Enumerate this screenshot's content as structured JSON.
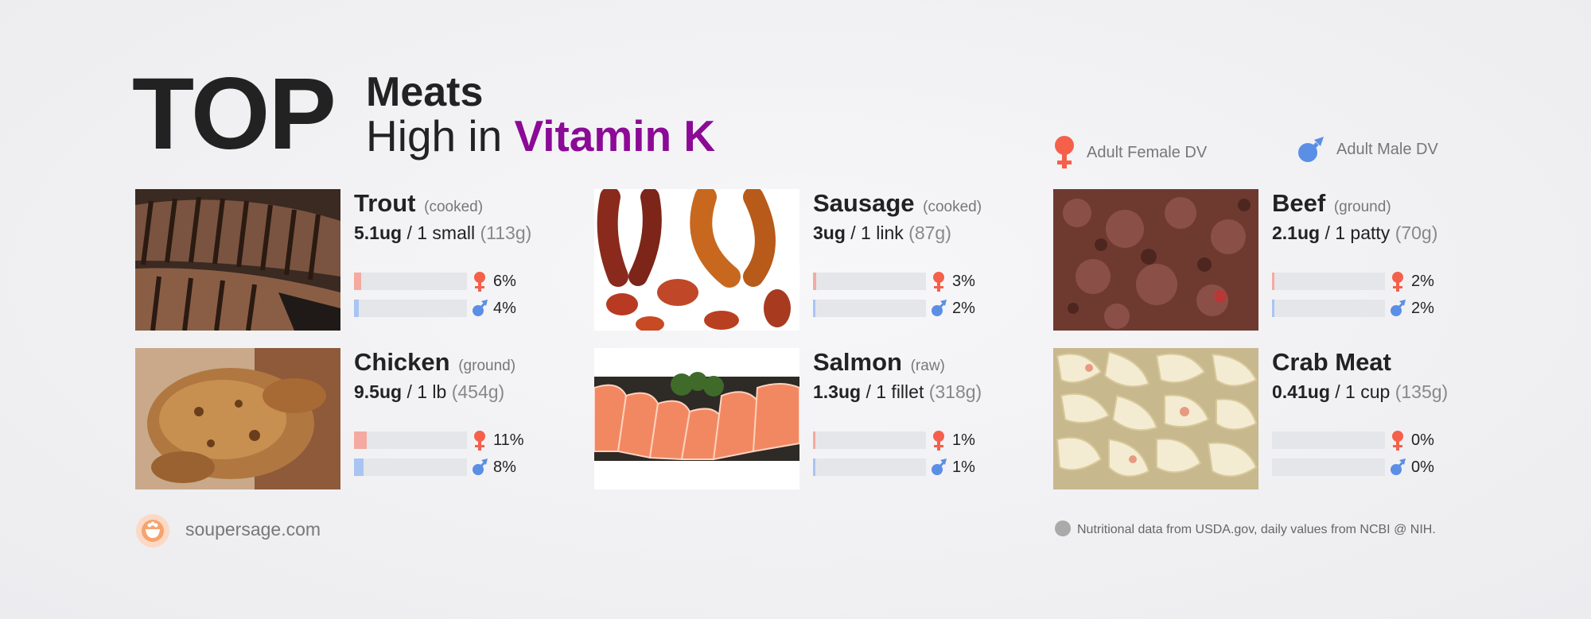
{
  "title": {
    "top": "TOP",
    "line1": "Meats",
    "line2_prefix": "High in",
    "line2_highlight": "Vitamin K"
  },
  "colors": {
    "highlight": "#8b0a96",
    "female": "#f5604a",
    "male": "#5b8fe6",
    "female_bar": "#f4aaa0",
    "male_bar": "#a9c4f2"
  },
  "legend": {
    "female_label": "Adult Female DV",
    "male_label": "Adult Male DV",
    "female_icon": "female-symbol-icon",
    "male_icon": "male-symbol-icon"
  },
  "chart_data": {
    "type": "bar",
    "title": "TOP Meats High in Vitamin K",
    "categories": [
      "Trout",
      "Sausage",
      "Beef",
      "Chicken",
      "Salmon",
      "Crab Meat"
    ],
    "series": [
      {
        "name": "Adult Female DV",
        "values": [
          6,
          3,
          2,
          11,
          1,
          0
        ]
      },
      {
        "name": "Adult Male DV",
        "values": [
          4,
          2,
          2,
          8,
          1,
          0
        ]
      }
    ],
    "ylim": [
      0,
      100
    ],
    "items": [
      {
        "name": "Trout",
        "prep": "(cooked)",
        "amount": "5.1ug",
        "serving": " / 1 small ",
        "grams": "(113g)",
        "female_pct": 6,
        "male_pct": 4,
        "female_label": "6%",
        "male_label": "4%"
      },
      {
        "name": "Sausage",
        "prep": "(cooked)",
        "amount": "3ug",
        "serving": " / 1 link ",
        "grams": "(87g)",
        "female_pct": 3,
        "male_pct": 2,
        "female_label": "3%",
        "male_label": "2%"
      },
      {
        "name": "Beef",
        "prep": "(ground)",
        "amount": "2.1ug",
        "serving": " / 1 patty ",
        "grams": "(70g)",
        "female_pct": 2,
        "male_pct": 2,
        "female_label": "2%",
        "male_label": "2%"
      },
      {
        "name": "Chicken",
        "prep": "(ground)",
        "amount": "9.5ug",
        "serving": " / 1 lb ",
        "grams": "(454g)",
        "female_pct": 11,
        "male_pct": 8,
        "female_label": "11%",
        "male_label": "8%"
      },
      {
        "name": "Salmon",
        "prep": "(raw)",
        "amount": "1.3ug",
        "serving": " / 1 fillet ",
        "grams": "(318g)",
        "female_pct": 1,
        "male_pct": 1,
        "female_label": "1%",
        "male_label": "1%"
      },
      {
        "name": "Crab Meat",
        "prep": "",
        "amount": "0.41ug",
        "serving": " / 1 cup ",
        "grams": "(135g)",
        "female_pct": 0,
        "male_pct": 0,
        "female_label": "0%",
        "male_label": "0%"
      }
    ]
  },
  "footer": {
    "site": "soupersage.com",
    "note": "Nutritional data from USDA.gov, daily values from NCBI @ NIH."
  }
}
